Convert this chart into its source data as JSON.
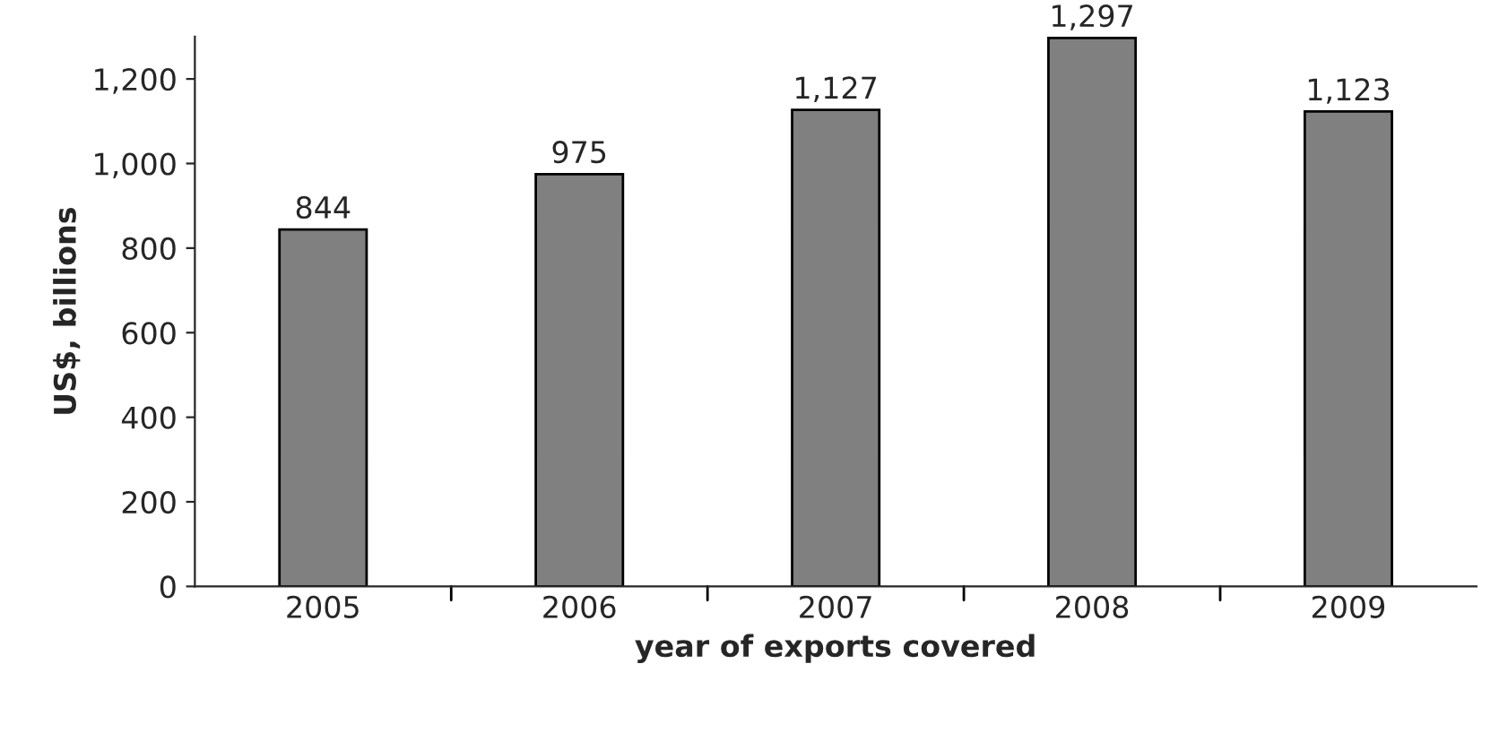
{
  "chart_data": {
    "type": "bar",
    "xlabel": "year of exports covered",
    "ylabel": "US$, billions",
    "categories": [
      "2005",
      "2006",
      "2007",
      "2008",
      "2009"
    ],
    "values": [
      844,
      975,
      1127,
      1297,
      1123
    ],
    "color": "#808080",
    "value_labels": [
      "844",
      "975",
      "1,127",
      "1,297",
      "1,123"
    ],
    "ylim": [
      0,
      1300
    ],
    "yticks": [
      0,
      {
        "value": 200,
        "label": "200"
      },
      {
        "value": 400,
        "label": "400"
      },
      {
        "value": 600,
        "label": "600"
      },
      {
        "value": 800,
        "label": "800"
      },
      {
        "value": 1000,
        "label": "1,000"
      },
      {
        "value": 1200,
        "label": "1,200"
      }
    ],
    "grid": false
  }
}
